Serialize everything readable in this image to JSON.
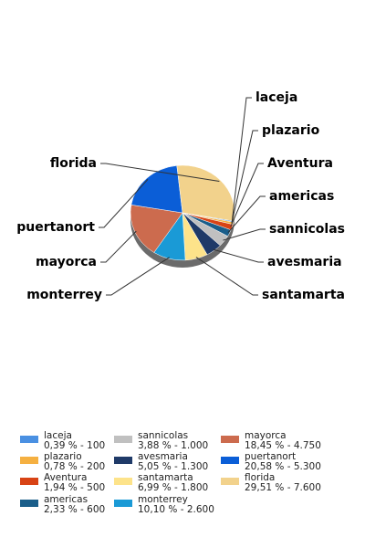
{
  "chart_data": {
    "type": "pie",
    "categories": [
      "laceja",
      "plazario",
      "Aventura",
      "americas",
      "sannicolas",
      "avesmaria",
      "santamarta",
      "monterrey",
      "mayorca",
      "puertanort",
      "florida"
    ],
    "values": [
      100,
      200,
      500,
      600,
      1000,
      1300,
      1800,
      2600,
      4750,
      5300,
      7600
    ],
    "value_labels": [
      "0,39 % - 100",
      "0,78 % - 200",
      "1,94 % - 500",
      "2,33 % - 600",
      "3,88 % - 1.000",
      "5,05 % - 1.300",
      "6,99 % - 1.800",
      "10,10 % - 2.600",
      "18,45 % - 4.750",
      "20,58 % - 5.300",
      "29,51 % - 7.600"
    ],
    "colors": [
      "#4a90e2",
      "#f5b041",
      "#d84315",
      "#1a5e8a",
      "#c0c0c0",
      "#1f3a68",
      "#fde38a",
      "#1a9ad6",
      "#cc6b4e",
      "#0b5ed7",
      "#f2d28c"
    ]
  }
}
